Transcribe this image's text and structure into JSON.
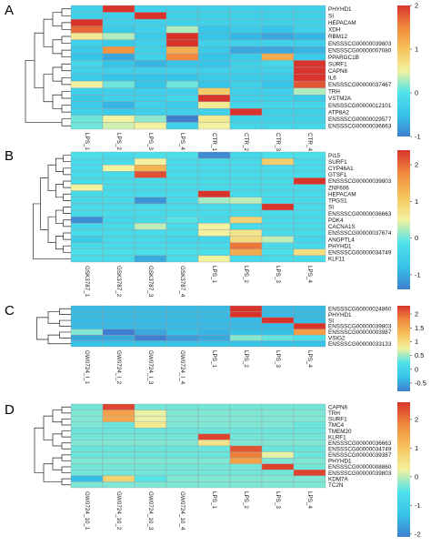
{
  "chart_data": [
    {
      "type": "heatmap",
      "panel_label": "A",
      "columns": [
        "LPS_1",
        "LPS_2",
        "LPS_3",
        "LPS_4",
        "CTR_1",
        "CTR_2",
        "CTR_3",
        "CTR_4"
      ],
      "rows": [
        "PHYHD1",
        "SI",
        "HEPACAM",
        "XDH",
        "RBM12",
        "ENSSSCG00000039803",
        "ENSSSCG00000007080",
        "PPARGC1B",
        "SURF1",
        "CAPN8",
        "IL6",
        "ENSSSCG00000037467",
        "TRH",
        "VSTM2A",
        "ENSSSCG00000012101",
        "ATP8A2",
        "ENSSSCG00000029577",
        "ENSSSCG00000036663"
      ],
      "values": [
        [
          -0.3,
          2.3,
          -0.3,
          -0.3,
          -0.3,
          -0.3,
          -0.3,
          -0.3
        ],
        [
          -0.3,
          -0.3,
          2.3,
          -0.3,
          -0.3,
          -0.3,
          -0.3,
          -0.3
        ],
        [
          2.4,
          -0.3,
          -0.3,
          -0.3,
          -0.3,
          -0.3,
          -0.3,
          -0.3
        ],
        [
          1.7,
          -0.4,
          -0.3,
          0.3,
          -0.5,
          -0.4,
          -0.5,
          -0.3
        ],
        [
          0.6,
          0.3,
          -0.4,
          2.1,
          -0.5,
          -0.6,
          -0.7,
          -0.6
        ],
        [
          -0.3,
          -0.4,
          -0.3,
          2.4,
          -0.3,
          -0.3,
          -0.3,
          -0.3
        ],
        [
          -0.4,
          1.4,
          -0.3,
          1.2,
          -0.4,
          -0.7,
          -0.7,
          -0.6
        ],
        [
          -0.5,
          -0.7,
          -0.3,
          1.5,
          -0.5,
          -0.4,
          1.2,
          -0.4
        ],
        [
          -0.2,
          -0.5,
          -0.6,
          -0.5,
          -0.5,
          -0.3,
          -0.2,
          2.0
        ],
        [
          -0.3,
          -0.3,
          -0.3,
          -0.3,
          -0.3,
          -0.3,
          -0.3,
          2.4
        ],
        [
          -0.4,
          -0.5,
          -0.5,
          -0.5,
          -0.4,
          -0.4,
          -0.4,
          2.1
        ],
        [
          0.5,
          0.1,
          -0.5,
          0.1,
          -0.5,
          -0.3,
          -0.5,
          1.8
        ],
        [
          -0.3,
          -0.3,
          -0.3,
          -0.3,
          0.9,
          -0.3,
          -0.3,
          0.3
        ],
        [
          -0.4,
          -0.3,
          -0.3,
          -0.2,
          2.4,
          -0.3,
          -0.3,
          -0.4
        ],
        [
          -0.4,
          -0.6,
          -0.3,
          -0.4,
          0.6,
          -0.2,
          -0.2,
          -0.2
        ],
        [
          -0.3,
          -0.4,
          -0.3,
          -0.3,
          -0.3,
          2.2,
          -0.3,
          -0.3
        ],
        [
          0.1,
          0.5,
          0.2,
          -1.3,
          0.6,
          -0.3,
          -0.3,
          -0.3
        ],
        [
          0.1,
          0.4,
          0.5,
          -0.3,
          0.5,
          -0.2,
          -0.2,
          -0.2
        ]
      ],
      "color_range": [
        -1,
        2
      ],
      "color_ticks": [
        2,
        1,
        0,
        -1
      ],
      "colormap": [
        "#3f7fcf",
        "#36c4e8",
        "#4ee2ea",
        "#f2f2a0",
        "#f6c35c",
        "#f08a3e",
        "#d8342c"
      ],
      "grid": true,
      "colorbar": "right"
    },
    {
      "type": "heatmap",
      "panel_label": "B",
      "columns": [
        "GSK3787_1",
        "GSK3787_2",
        "GSK3787_3",
        "GSK3787_4",
        "LPS_1",
        "LPS_2",
        "LPS_3",
        "LPS_4"
      ],
      "rows": [
        "PI15",
        "SURF1",
        "CYP46A1",
        "GTSF1",
        "ENSSSCG00000039803",
        "ZNF606",
        "HEPACAM",
        "TPGS1",
        "SI",
        "ENSSSCG00000036663",
        "PDK4",
        "CACNA1S",
        "ENSSSCG00000037674",
        "ANGPTL4",
        "PHYHD1",
        "ENSSSCG00000034749",
        "KLF11"
      ],
      "values": [
        [
          -0.2,
          -0.3,
          -0.2,
          -0.2,
          -1.3,
          -0.4,
          -0.2,
          -0.2
        ],
        [
          -0.3,
          -0.3,
          0.5,
          -0.3,
          -0.3,
          -0.3,
          1.0,
          -0.3
        ],
        [
          -0.3,
          0.5,
          1.3,
          -0.3,
          -0.3,
          -0.3,
          -0.3,
          -0.3
        ],
        [
          -0.3,
          -0.3,
          2.2,
          -0.3,
          -0.3,
          -0.3,
          -0.3,
          -0.3
        ],
        [
          -0.3,
          -0.3,
          -0.3,
          -0.3,
          -0.3,
          -0.3,
          -0.3,
          2.4
        ],
        [
          0.5,
          -0.3,
          -0.3,
          -0.3,
          -0.3,
          -0.3,
          -0.3,
          -0.3
        ],
        [
          -0.3,
          -0.3,
          -0.3,
          -0.3,
          2.4,
          -0.3,
          -0.3,
          -0.3
        ],
        [
          -0.3,
          -0.3,
          -1.2,
          -0.3,
          0.2,
          0.3,
          -0.3,
          -0.3
        ],
        [
          -0.3,
          -0.3,
          -0.3,
          -0.3,
          -0.3,
          -0.3,
          2.4,
          -0.3
        ],
        [
          -0.3,
          -0.3,
          -0.3,
          -0.3,
          -0.3,
          -0.3,
          -0.3,
          -0.3
        ],
        [
          -1.3,
          -0.4,
          -0.3,
          -0.1,
          -0.3,
          0.9,
          -0.3,
          -0.3
        ],
        [
          -0.4,
          -0.3,
          0.3,
          -0.3,
          0.5,
          -0.3,
          -0.3,
          -0.3
        ],
        [
          -0.3,
          -0.3,
          -0.3,
          -0.3,
          0.5,
          0.7,
          -0.3,
          -0.3
        ],
        [
          -0.6,
          -0.3,
          -0.3,
          -0.4,
          -0.4,
          0.8,
          0.3,
          -0.4
        ],
        [
          -0.3,
          -0.3,
          -0.3,
          -0.3,
          -0.3,
          1.9,
          -0.3,
          -0.3
        ],
        [
          -0.2,
          -0.2,
          -0.2,
          -0.2,
          -0.2,
          1.4,
          -0.2,
          0.8
        ],
        [
          -0.3,
          -0.3,
          -1.0,
          -0.3,
          0.5,
          -0.3,
          -0.3,
          -0.3
        ]
      ],
      "color_range": [
        -1.4,
        2.4
      ],
      "color_ticks": [
        2,
        1,
        0,
        -1
      ],
      "colormap": [
        "#3f7fcf",
        "#36c4e8",
        "#4ee2ea",
        "#f2f2a0",
        "#f6c35c",
        "#f08a3e",
        "#d8342c"
      ],
      "grid": true,
      "colorbar": "right"
    },
    {
      "type": "heatmap",
      "panel_label": "C",
      "columns": [
        "GW0724_I_1",
        "GW0724_I_2",
        "GW0724_I_3",
        "GW0724_I_4",
        "LPS_1",
        "LPS_2",
        "LPS_3",
        "LPS_4"
      ],
      "rows": [
        "ENSSSCG00000024860",
        "PHYHD1",
        "SI",
        "ENSSSCG00000039803",
        "ENSSSCG00000003987",
        "VSIG2",
        "ENSSSCG00000033133"
      ],
      "values": [
        [
          -0.35,
          -0.35,
          -0.35,
          -0.35,
          -0.35,
          2.45,
          -0.35,
          -0.35
        ],
        [
          -0.35,
          -0.35,
          -0.35,
          -0.35,
          -0.35,
          2.45,
          -0.35,
          -0.35
        ],
        [
          -0.35,
          -0.35,
          -0.35,
          -0.35,
          -0.35,
          -0.35,
          2.45,
          -0.35
        ],
        [
          -0.35,
          -0.35,
          -0.35,
          -0.35,
          -0.35,
          -0.35,
          -0.35,
          2.45
        ],
        [
          0.4,
          -0.9,
          -0.5,
          -0.3,
          -0.4,
          -0.3,
          -0.3,
          1.6
        ],
        [
          -0.5,
          -0.5,
          -0.9,
          -0.6,
          -0.5,
          0.4,
          0.3,
          0.2
        ],
        [
          -0.3,
          -0.3,
          -0.3,
          -0.3,
          -0.3,
          -0.3,
          -0.3,
          -0.3
        ]
      ],
      "color_range": [
        -0.8,
        2.3
      ],
      "color_ticks": [
        2,
        1.5,
        1,
        0.5,
        0,
        -0.5
      ],
      "colormap": [
        "#3f7fcf",
        "#36c4e8",
        "#4ee2ea",
        "#f2f2a0",
        "#f6c35c",
        "#f08a3e",
        "#d8342c"
      ],
      "grid": true,
      "colorbar": "right"
    },
    {
      "type": "heatmap",
      "panel_label": "D",
      "columns": [
        "GW0724_10_1",
        "GW0724_10_2",
        "GW0724_10_3",
        "GW0724_10_4",
        "LPS_1",
        "LPS_2",
        "LPS_3",
        "LPS_4"
      ],
      "rows": [
        "CAPN8",
        "TRH",
        "SURF1",
        "TMC4",
        "TMEM20",
        "KLRF1",
        "ENSSSCG00000036663",
        "ENSSSCG00000034749",
        "ENSSSCG00000039387",
        "PHYHD1",
        "ENSSSCG00000008860",
        "ENSSSCG00000039803",
        "KDM7A",
        "TC2N"
      ],
      "values": [
        [
          -0.35,
          2.45,
          -0.35,
          -0.35,
          -0.35,
          -0.35,
          -0.35,
          -0.35
        ],
        [
          -0.3,
          1.5,
          0.2,
          -0.3,
          -0.3,
          -0.3,
          -0.3,
          -0.3
        ],
        [
          -0.3,
          1.4,
          0.2,
          -0.3,
          -0.3,
          -0.3,
          -0.3,
          -0.3
        ],
        [
          -0.3,
          -0.4,
          0.4,
          -0.3,
          -0.3,
          -0.3,
          -0.3,
          -0.4
        ],
        [
          -0.4,
          -0.4,
          -0.4,
          -0.4,
          -0.4,
          -0.4,
          -0.4,
          -0.4
        ],
        [
          -0.35,
          -0.35,
          -0.35,
          -0.35,
          2.45,
          -0.35,
          -0.35,
          -0.35
        ],
        [
          -0.3,
          -0.3,
          -0.3,
          -0.3,
          0.5,
          -0.3,
          -0.3,
          -0.3
        ],
        [
          -0.4,
          -0.4,
          -0.4,
          -0.4,
          -0.4,
          2.3,
          -0.4,
          -0.4
        ],
        [
          -0.4,
          -0.4,
          -0.4,
          -0.4,
          -0.4,
          1.9,
          0.2,
          -0.4
        ],
        [
          -0.3,
          -0.3,
          -0.3,
          -0.3,
          -0.3,
          1.5,
          -0.3,
          -0.3
        ],
        [
          -0.35,
          -0.35,
          -0.35,
          -0.35,
          -0.35,
          -0.35,
          2.45,
          -0.35
        ],
        [
          -0.35,
          -0.35,
          -0.35,
          -0.35,
          -0.35,
          -0.35,
          -0.35,
          2.45
        ],
        [
          -1.4,
          0.8,
          -0.5,
          -0.3,
          -0.3,
          -0.3,
          -0.3,
          -0.3
        ],
        [
          -0.3,
          -0.3,
          -0.3,
          -0.3,
          -0.3,
          -0.3,
          -0.3,
          -0.3
        ]
      ],
      "color_range": [
        -2.1,
        2.6
      ],
      "color_ticks": [
        2,
        1,
        0,
        -1,
        -2
      ],
      "colormap": [
        "#3f7fcf",
        "#36c4e8",
        "#4ee2ea",
        "#f2f2a0",
        "#f6c35c",
        "#f08a3e",
        "#d8342c"
      ],
      "grid": true,
      "colorbar": "right"
    }
  ]
}
